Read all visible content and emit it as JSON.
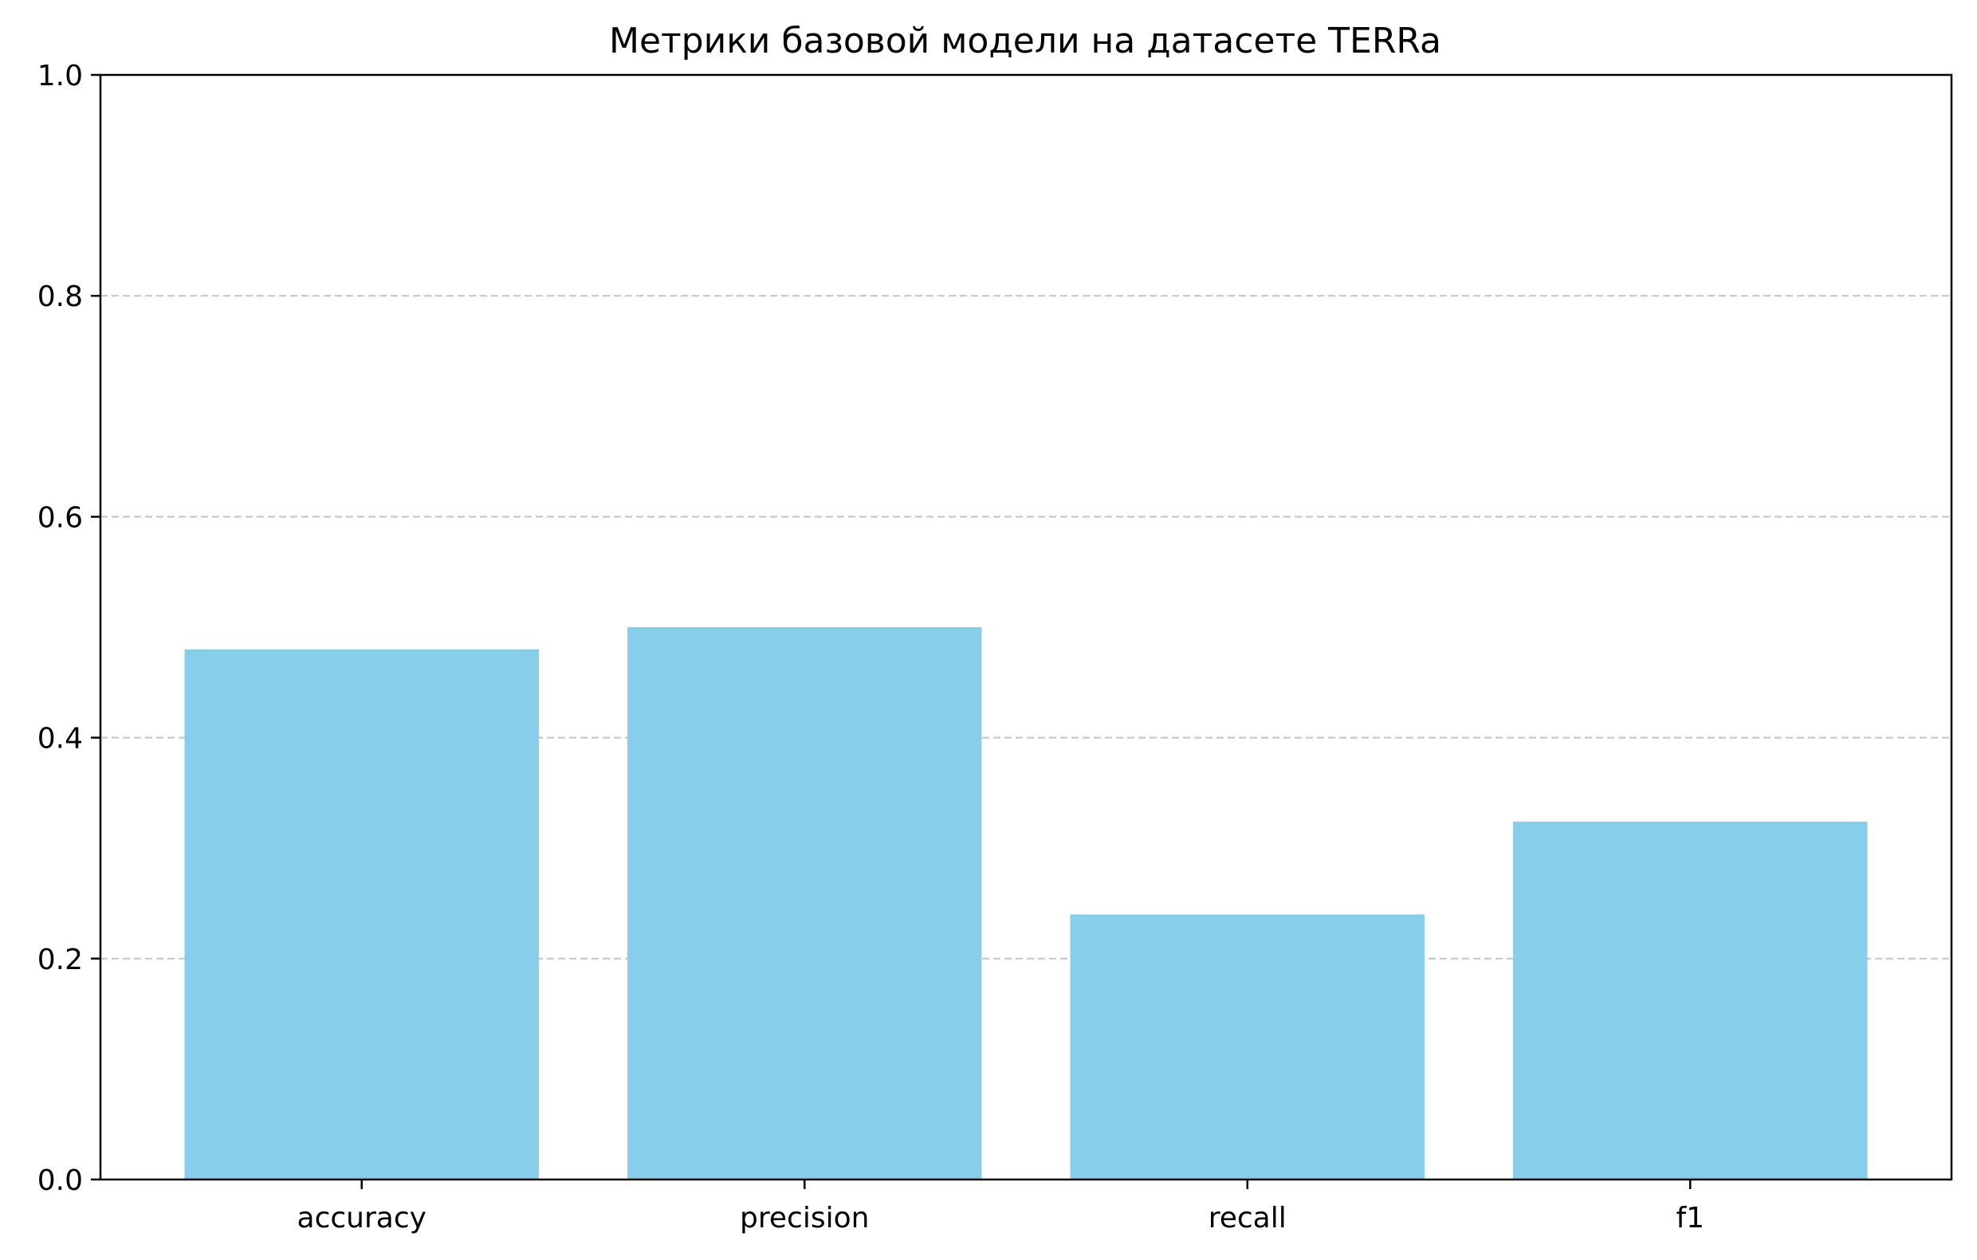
{
  "chart_data": {
    "type": "bar",
    "title": "Метрики базовой модели на датасете TERRa",
    "xlabel": "",
    "ylabel": "",
    "categories": [
      "accuracy",
      "precision",
      "recall",
      "f1"
    ],
    "values": [
      0.48,
      0.5,
      0.24,
      0.324
    ],
    "ylim": [
      0,
      1
    ],
    "yticks": [
      "0.0",
      "0.2",
      "0.4",
      "0.6",
      "0.8",
      "1.0"
    ],
    "grid": "y-dashed",
    "legend": "none",
    "bar_color": "#87CEEB",
    "grid_color": "#c8c8c8"
  }
}
